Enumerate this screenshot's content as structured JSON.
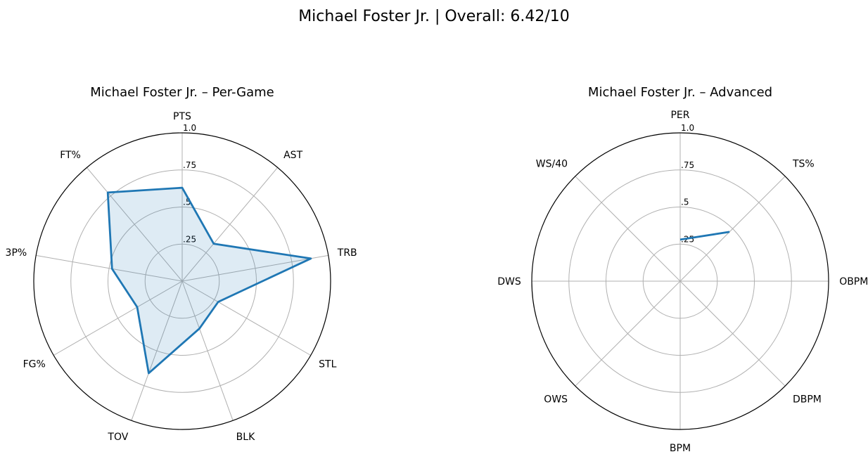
{
  "chart_data": {
    "title": "Michael Foster Jr. | Overall: 6.42/10",
    "charts": [
      {
        "type": "radar",
        "title": "Michael Foster Jr. – Per-Game",
        "axes": [
          "PTS",
          "AST",
          "TRB",
          "STL",
          "BLK",
          "TOV",
          "FG%",
          "3P%",
          "FT%"
        ],
        "radial_ticks": [
          ".25",
          ".5",
          ".75",
          "1.0"
        ],
        "rlim": [
          0,
          1
        ],
        "grid": true,
        "series": [
          {
            "values": [
              0.63,
              0.33,
              0.88,
              0.28,
              0.34,
              0.66,
              0.35,
              0.48,
              0.78
            ],
            "filled": true,
            "color": "#1f77b4"
          }
        ]
      },
      {
        "type": "radar",
        "title": "Michael Foster Jr. – Advanced",
        "axes": [
          "PER",
          "TS%",
          "OBPM",
          "DBPM",
          "BPM",
          "OWS",
          "DWS",
          "WS/40"
        ],
        "radial_ticks": [
          ".25",
          ".5",
          ".75",
          "1.0"
        ],
        "rlim": [
          0,
          1
        ],
        "grid": true,
        "series": [
          {
            "values": [
              0.28,
              0.47,
              null,
              null,
              null,
              null,
              null,
              null
            ],
            "filled": false,
            "color": "#1f77b4"
          }
        ]
      }
    ]
  }
}
